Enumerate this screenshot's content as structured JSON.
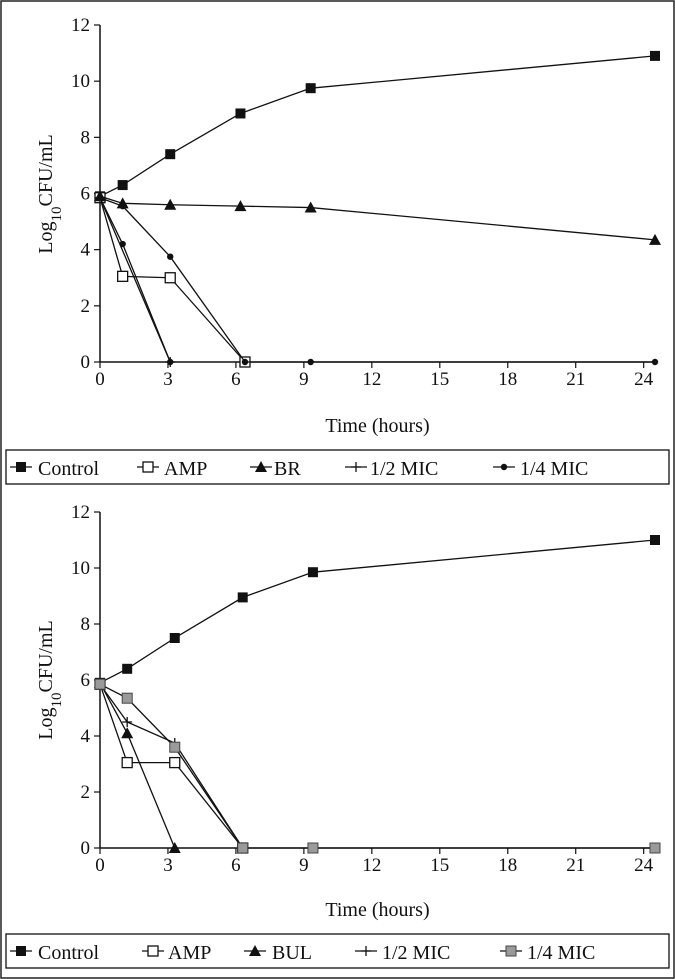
{
  "chart_data": [
    {
      "type": "line",
      "xlabel": "Time (hours)",
      "ylabel_main": "Log",
      "ylabel_sub": "10",
      "ylabel_rest": "CFU/mL",
      "xlim": [
        0,
        24.5
      ],
      "ylim": [
        0,
        12
      ],
      "xticks": [
        "0",
        "3",
        "6",
        "9",
        "12",
        "15",
        "18",
        "21",
        "24"
      ],
      "yticks": [
        "0",
        "2",
        "4",
        "6",
        "8",
        "10",
        "12"
      ],
      "grid": false,
      "legend_position": "bottom",
      "series": [
        {
          "name": "Control",
          "marker": "filled-square",
          "legend_symbol": "■",
          "x": [
            0,
            1,
            3.1,
            6.2,
            9.3,
            24.5
          ],
          "y": [
            5.9,
            6.3,
            7.4,
            8.85,
            9.75,
            10.9
          ]
        },
        {
          "name": "AMP",
          "marker": "open-square",
          "legend_symbol": "□",
          "x": [
            0,
            1,
            3.1,
            6.4
          ],
          "y": [
            5.85,
            3.05,
            3.0,
            0
          ]
        },
        {
          "name": "BR",
          "marker": "filled-triangle",
          "legend_symbol": "▲",
          "x": [
            0,
            1,
            3.1,
            6.2,
            9.3,
            24.5
          ],
          "y": [
            5.9,
            5.65,
            5.6,
            5.55,
            5.5,
            4.35
          ]
        },
        {
          "name": "1/2 MIC",
          "marker": "plus",
          "legend_symbol": "+",
          "x": [
            0,
            3.1
          ],
          "y": [
            5.85,
            0
          ]
        },
        {
          "name": "1/4 MIC",
          "marker": "filled-circle",
          "legend_symbol": "●",
          "x": [
            0,
            1,
            3.1,
            6.4,
            9.3,
            24.5
          ],
          "y": [
            5.85,
            5.55,
            3.75,
            0,
            0,
            0
          ]
        },
        {
          "name": "",
          "marker": "filled-circle",
          "legend_symbol": "",
          "x": [
            0,
            1,
            3.1
          ],
          "y": [
            5.85,
            4.2,
            0
          ]
        }
      ]
    },
    {
      "type": "line",
      "xlabel": "Time (hours)",
      "ylabel_main": "Log",
      "ylabel_sub": "10",
      "ylabel_rest": "CFU/mL",
      "xlim": [
        0,
        24.5
      ],
      "ylim": [
        0,
        12
      ],
      "xticks": [
        "0",
        "3",
        "6",
        "9",
        "12",
        "15",
        "18",
        "21",
        "24"
      ],
      "yticks": [
        "0",
        "2",
        "4",
        "6",
        "8",
        "10",
        "12"
      ],
      "grid": false,
      "legend_position": "bottom",
      "series": [
        {
          "name": "Control",
          "marker": "filled-square",
          "legend_symbol": "■",
          "x": [
            0,
            1.2,
            3.3,
            6.3,
            9.4,
            24.5
          ],
          "y": [
            5.9,
            6.4,
            7.5,
            8.95,
            9.85,
            11.0
          ]
        },
        {
          "name": "AMP",
          "marker": "open-square",
          "legend_symbol": "□",
          "x": [
            0,
            1.2,
            3.3,
            6.3
          ],
          "y": [
            5.85,
            3.05,
            3.05,
            0
          ]
        },
        {
          "name": "BUL",
          "marker": "filled-triangle",
          "legend_symbol": "▲",
          "x": [
            0,
            1.2,
            3.3
          ],
          "y": [
            5.9,
            4.1,
            0
          ]
        },
        {
          "name": "1/2 MIC",
          "marker": "plus",
          "legend_symbol": "+",
          "x": [
            0,
            1.2,
            3.3,
            6.3
          ],
          "y": [
            5.85,
            4.5,
            3.75,
            0
          ]
        },
        {
          "name": "1/4 MIC",
          "marker": "grey-square",
          "legend_symbol": "■",
          "x": [
            0,
            1.2,
            3.3,
            6.3,
            9.4,
            24.5
          ],
          "y": [
            5.85,
            5.35,
            3.6,
            0,
            0,
            0
          ]
        }
      ]
    }
  ]
}
